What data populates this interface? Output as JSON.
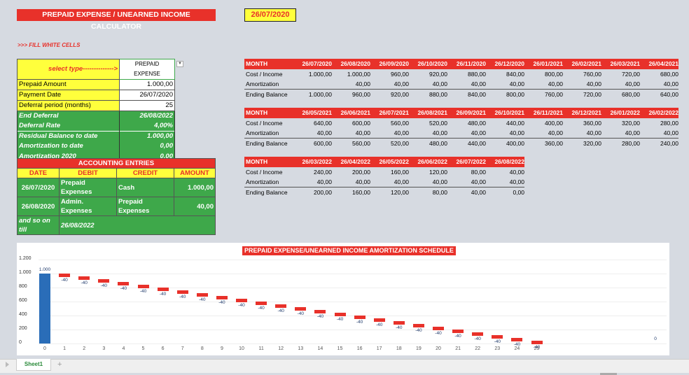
{
  "header": {
    "title": "PREPAID EXPENSE / UNEARNED INCOME CALCULATOR",
    "current_date": "26/07/2020",
    "fill_hint": ">>> FILL WHITE CELLS"
  },
  "inputs": {
    "select_type_label": "select type-------------->",
    "select_type_value": "PREPAID EXPENSE",
    "prepaid_amount_label": "Prepaid Amount",
    "prepaid_amount": "1.000,00",
    "payment_date_label": "Payment Date",
    "payment_date": "26/07/2020",
    "deferral_period_label": "Deferral period (months)",
    "deferral_period": "25",
    "end_deferral_label": "End Deferral",
    "end_deferral": "26/08/2022",
    "deferral_rate_label": "Deferral Rate",
    "deferral_rate": "4,00%",
    "residual_label": "Residual Balance to date",
    "residual": "1.000,00",
    "amort_to_date_label": "Amortization to date",
    "amort_to_date": "0,00",
    "amort_year_label": "Amortization   2020",
    "amort_year": "0,00"
  },
  "accounting": {
    "title": "ACCOUNTING ENTRIES",
    "cols": [
      "DATE",
      "DEBIT",
      "CREDIT",
      "AMOUNT"
    ],
    "rows": [
      [
        "26/07/2020",
        "Prepaid Expenses",
        "Cash",
        "1.000,00"
      ],
      [
        "26/08/2020",
        "Admin. Expenses",
        "Prepaid Expenses",
        "40,00"
      ]
    ],
    "footer_label": "and so on till",
    "footer_date": "26/08/2022"
  },
  "schedule": {
    "row_labels": [
      "MONTH",
      "Cost / Income",
      "Amortization",
      "Ending Balance"
    ],
    "blocks": [
      {
        "months": [
          "26/07/2020",
          "26/08/2020",
          "26/09/2020",
          "26/10/2020",
          "26/11/2020",
          "26/12/2020",
          "26/01/2021",
          "26/02/2021",
          "26/03/2021",
          "26/04/2021"
        ],
        "cost": [
          "1.000,00",
          "1.000,00",
          "960,00",
          "920,00",
          "880,00",
          "840,00",
          "800,00",
          "760,00",
          "720,00",
          "680,00"
        ],
        "amort": [
          "",
          "40,00",
          "40,00",
          "40,00",
          "40,00",
          "40,00",
          "40,00",
          "40,00",
          "40,00",
          "40,00"
        ],
        "ending": [
          "1.000,00",
          "960,00",
          "920,00",
          "880,00",
          "840,00",
          "800,00",
          "760,00",
          "720,00",
          "680,00",
          "640,00"
        ]
      },
      {
        "months": [
          "26/05/2021",
          "26/06/2021",
          "26/07/2021",
          "26/08/2021",
          "26/09/2021",
          "26/10/2021",
          "26/11/2021",
          "26/12/2021",
          "26/01/2022",
          "26/02/2022"
        ],
        "cost": [
          "640,00",
          "600,00",
          "560,00",
          "520,00",
          "480,00",
          "440,00",
          "400,00",
          "360,00",
          "320,00",
          "280,00"
        ],
        "amort": [
          "40,00",
          "40,00",
          "40,00",
          "40,00",
          "40,00",
          "40,00",
          "40,00",
          "40,00",
          "40,00",
          "40,00"
        ],
        "ending": [
          "600,00",
          "560,00",
          "520,00",
          "480,00",
          "440,00",
          "400,00",
          "360,00",
          "320,00",
          "280,00",
          "240,00"
        ]
      },
      {
        "months": [
          "26/03/2022",
          "26/04/2022",
          "26/05/2022",
          "26/06/2022",
          "26/07/2022",
          "26/08/2022"
        ],
        "cost": [
          "240,00",
          "200,00",
          "160,00",
          "120,00",
          "80,00",
          "40,00"
        ],
        "amort": [
          "40,00",
          "40,00",
          "40,00",
          "40,00",
          "40,00",
          "40,00"
        ],
        "ending": [
          "200,00",
          "160,00",
          "120,00",
          "80,00",
          "40,00",
          "0,00"
        ]
      }
    ]
  },
  "chart_data": {
    "type": "waterfall",
    "title": "PREPAID EXPENSE/UNEARNED INCOME AMORTIZATION SCHEDULE",
    "categories": [
      "0",
      "1",
      "2",
      "3",
      "4",
      "5",
      "6",
      "7",
      "8",
      "9",
      "10",
      "11",
      "12",
      "13",
      "14",
      "15",
      "16",
      "17",
      "18",
      "19",
      "20",
      "21",
      "22",
      "23",
      "24",
      "25",
      ""
    ],
    "values": [
      1000,
      -40,
      -40,
      -40,
      -40,
      -40,
      -40,
      -40,
      -40,
      -40,
      -40,
      -40,
      -40,
      -40,
      -40,
      -40,
      -40,
      -40,
      -40,
      -40,
      -40,
      -40,
      -40,
      -40,
      -40,
      -40,
      0
    ],
    "data_labels": [
      "1.000",
      "-40",
      "-40",
      "-40",
      "-40",
      "-40",
      "-40",
      "-40",
      "-40",
      "-40",
      "-40",
      "-40",
      "-40",
      "-40",
      "-40",
      "-40",
      "-40",
      "-40",
      "-40",
      "-40",
      "-40",
      "-40",
      "-40",
      "-40",
      "-40",
      "-40",
      "0"
    ],
    "yticks": [
      "0",
      "200",
      "400",
      "600",
      "800",
      "1.000",
      "1.200"
    ],
    "ylim": [
      0,
      1200
    ],
    "colors": {
      "increase": "#2a6db8",
      "decrease": "#e8312a"
    },
    "grid": true
  },
  "sheet_tabs": [
    "Sheet1"
  ],
  "add_sheet": "+"
}
